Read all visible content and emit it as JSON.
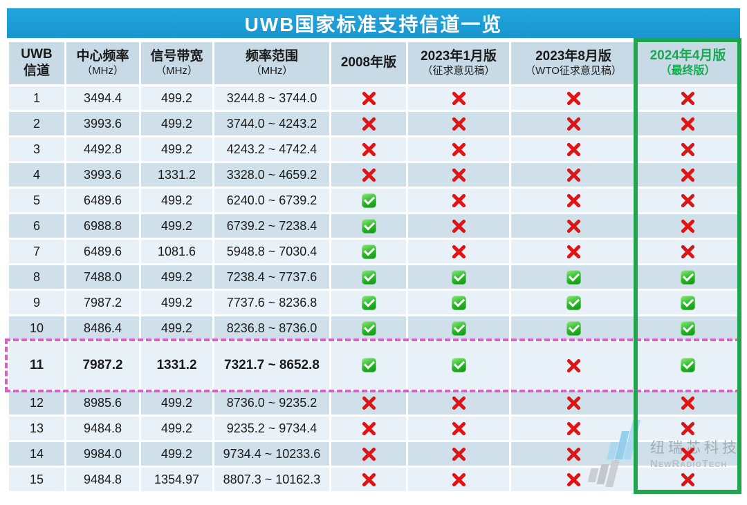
{
  "chart_data": {
    "type": "table",
    "title": "UWB国家标准支持信道一览",
    "columns": [
      {
        "main": "UWB",
        "sub": "信道",
        "accent": false
      },
      {
        "main": "中心频率",
        "sub": "（MHz）",
        "accent": false
      },
      {
        "main": "信号带宽",
        "sub": "（MHz）",
        "accent": false
      },
      {
        "main": "频率范围",
        "sub": "（MHz）",
        "accent": false
      },
      {
        "main": "2008年版",
        "sub": "",
        "accent": false
      },
      {
        "main": "2023年1月版",
        "sub": "（征求意见稿）",
        "accent": false
      },
      {
        "main": "2023年8月版",
        "sub": "（WTO征求意见稿）",
        "accent": false
      },
      {
        "main": "2024年4月版",
        "sub": "（最终版）",
        "accent": true
      }
    ],
    "status_legend": {
      "true": "supported (green check)",
      "false": "not supported (red cross)"
    },
    "highlighted_row_channel": "11",
    "highlighted_column": "2024年4月版（最终版）",
    "rows": [
      {
        "channel": "1",
        "center": "3494.4",
        "bandwidth": "499.2",
        "range": "3244.8 ~ 3744.0",
        "status": [
          false,
          false,
          false,
          false
        ],
        "emphasized": false
      },
      {
        "channel": "2",
        "center": "3993.6",
        "bandwidth": "499.2",
        "range": "3744.0 ~ 4243.2",
        "status": [
          false,
          false,
          false,
          false
        ],
        "emphasized": false
      },
      {
        "channel": "3",
        "center": "4492.8",
        "bandwidth": "499.2",
        "range": "4243.2 ~ 4742.4",
        "status": [
          false,
          false,
          false,
          false
        ],
        "emphasized": false
      },
      {
        "channel": "4",
        "center": "3993.6",
        "bandwidth": "1331.2",
        "range": "3328.0 ~ 4659.2",
        "status": [
          false,
          false,
          false,
          false
        ],
        "emphasized": false
      },
      {
        "channel": "5",
        "center": "6489.6",
        "bandwidth": "499.2",
        "range": "6240.0 ~ 6739.2",
        "status": [
          true,
          false,
          false,
          false
        ],
        "emphasized": false
      },
      {
        "channel": "6",
        "center": "6988.8",
        "bandwidth": "499.2",
        "range": "6739.2 ~ 7238.4",
        "status": [
          true,
          false,
          false,
          false
        ],
        "emphasized": false
      },
      {
        "channel": "7",
        "center": "6489.6",
        "bandwidth": "1081.6",
        "range": "5948.8 ~ 7030.4",
        "status": [
          true,
          false,
          false,
          false
        ],
        "emphasized": false
      },
      {
        "channel": "8",
        "center": "7488.0",
        "bandwidth": "499.2",
        "range": "7238.4 ~ 7737.6",
        "status": [
          true,
          true,
          true,
          true
        ],
        "emphasized": false
      },
      {
        "channel": "9",
        "center": "7987.2",
        "bandwidth": "499.2",
        "range": "7737.6 ~ 8236.8",
        "status": [
          true,
          true,
          true,
          true
        ],
        "emphasized": false
      },
      {
        "channel": "10",
        "center": "8486.4",
        "bandwidth": "499.2",
        "range": "8236.8 ~ 8736.0",
        "status": [
          true,
          true,
          true,
          true
        ],
        "emphasized": false
      },
      {
        "channel": "11",
        "center": "7987.2",
        "bandwidth": "1331.2",
        "range": "7321.7 ~ 8652.8",
        "status": [
          true,
          true,
          false,
          true
        ],
        "emphasized": true
      },
      {
        "channel": "12",
        "center": "8985.6",
        "bandwidth": "499.2",
        "range": "8736.0 ~ 9235.2",
        "status": [
          false,
          false,
          false,
          false
        ],
        "emphasized": false
      },
      {
        "channel": "13",
        "center": "9484.8",
        "bandwidth": "499.2",
        "range": "9235.2 ~ 9734.4",
        "status": [
          false,
          false,
          false,
          false
        ],
        "emphasized": false
      },
      {
        "channel": "14",
        "center": "9984.0",
        "bandwidth": "499.2",
        "range": "9734.4 ~ 10233.6",
        "status": [
          false,
          false,
          false,
          false
        ],
        "emphasized": false
      },
      {
        "channel": "15",
        "center": "9484.8",
        "bandwidth": "1354.97",
        "range": "8807.3 ~ 10162.3",
        "status": [
          false,
          false,
          false,
          false
        ],
        "emphasized": false
      }
    ]
  },
  "watermark": {
    "cn": "纽瑞芯科技",
    "en": "NewRadioTech"
  },
  "colors": {
    "title_bar_blue": "#1d9ed6",
    "header_bg": "#c7dae6",
    "row_light": "#e9f1f8",
    "row_dark": "#cfe0eb",
    "highlight_column_green": "#1fa64d",
    "highlight_column_text_green": "#17a94f",
    "highlight_row_pink": "#d95fc8",
    "cross_red": "#df1414",
    "check_green": "#25b825"
  }
}
